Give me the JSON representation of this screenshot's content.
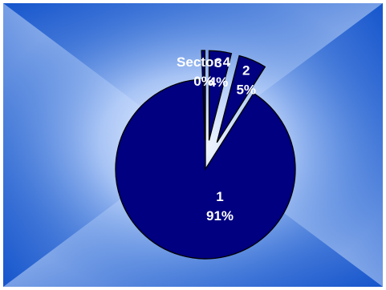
{
  "chart_data": {
    "type": "pie",
    "slices": [
      {
        "name": "1",
        "value": 91,
        "pct_label": "91%",
        "color": "#000080",
        "exploded": false
      },
      {
        "name": "2",
        "value": 5,
        "pct_label": "5%",
        "color": "#000080",
        "exploded": true
      },
      {
        "name": "3",
        "value": 4,
        "pct_label": "4%",
        "color": "#000080",
        "exploded": true
      },
      {
        "name": "Sector 4",
        "value": 0,
        "pct_label": "0%",
        "color": "#000080",
        "exploded": true
      }
    ],
    "start_angle_deg": 0,
    "direction": "counterclockwise",
    "legend": "none",
    "background": {
      "style": "radial-gradient",
      "inner_color": "#ffffff",
      "outer_color": "#1a5fd0"
    },
    "slice_border_color": "#000000",
    "label_color": "#ffffff"
  }
}
